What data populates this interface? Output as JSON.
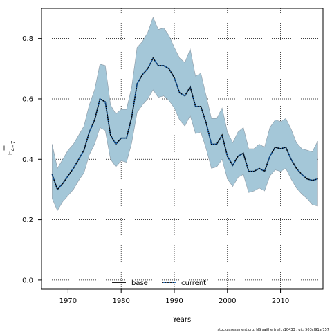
{
  "chart_data": {
    "type": "area",
    "xlabel": "Years",
    "ylabel_main": "F",
    "ylabel_sub": "4−7",
    "xlim": [
      1965,
      2018
    ],
    "ylim": [
      -0.03,
      0.9
    ],
    "x_ticks": [
      1970,
      1980,
      1990,
      2000,
      2010
    ],
    "y_ticks": [
      0.0,
      0.2,
      0.4,
      0.6,
      0.8
    ],
    "y_tick_labels": [
      "0.0",
      "0.2",
      "0.4",
      "0.6",
      "0.8"
    ],
    "grid": true,
    "legend_position": "bottom-center",
    "legend": [
      {
        "label": "base",
        "style": "solid",
        "color": "#000000"
      },
      {
        "label": "current",
        "style": "dotted",
        "color": "#000000",
        "secondary_color": "#1a63b0"
      }
    ],
    "band_color": "#a4c7d8",
    "x": [
      1967,
      1968,
      1969,
      1970,
      1971,
      1972,
      1973,
      1974,
      1975,
      1976,
      1977,
      1978,
      1979,
      1980,
      1981,
      1982,
      1983,
      1984,
      1985,
      1986,
      1987,
      1988,
      1989,
      1990,
      1991,
      1992,
      1993,
      1994,
      1995,
      1996,
      1997,
      1998,
      1999,
      2000,
      2001,
      2002,
      2003,
      2004,
      2005,
      2006,
      2007,
      2008,
      2009,
      2010,
      2011,
      2012,
      2013,
      2014,
      2015,
      2016,
      2017
    ],
    "series": [
      {
        "name": "base",
        "values": [
          0.35,
          0.3,
          0.32,
          0.345,
          0.37,
          0.4,
          0.43,
          0.49,
          0.53,
          0.6,
          0.59,
          0.48,
          0.45,
          0.47,
          0.47,
          0.54,
          0.65,
          0.68,
          0.7,
          0.735,
          0.71,
          0.71,
          0.7,
          0.67,
          0.62,
          0.61,
          0.64,
          0.575,
          0.575,
          0.52,
          0.45,
          0.45,
          0.48,
          0.41,
          0.38,
          0.41,
          0.42,
          0.36,
          0.36,
          0.37,
          0.36,
          0.41,
          0.44,
          0.435,
          0.44,
          0.4,
          0.37,
          0.35,
          0.335,
          0.33,
          0.335
        ]
      },
      {
        "name": "current",
        "values": [
          0.35,
          0.3,
          0.32,
          0.345,
          0.37,
          0.4,
          0.43,
          0.49,
          0.53,
          0.6,
          0.59,
          0.48,
          0.45,
          0.47,
          0.47,
          0.54,
          0.65,
          0.68,
          0.7,
          0.735,
          0.71,
          0.71,
          0.7,
          0.67,
          0.62,
          0.61,
          0.64,
          0.575,
          0.575,
          0.52,
          0.45,
          0.45,
          0.48,
          0.41,
          0.38,
          0.41,
          0.42,
          0.36,
          0.36,
          0.37,
          0.36,
          0.41,
          0.44,
          0.435,
          0.44,
          0.4,
          0.37,
          0.35,
          0.335,
          0.33,
          0.335
        ]
      }
    ],
    "band_upper": [
      0.45,
      0.37,
      0.4,
      0.43,
      0.45,
      0.48,
      0.51,
      0.58,
      0.63,
      0.715,
      0.71,
      0.58,
      0.55,
      0.565,
      0.565,
      0.64,
      0.77,
      0.79,
      0.82,
      0.87,
      0.83,
      0.835,
      0.81,
      0.77,
      0.735,
      0.72,
      0.765,
      0.675,
      0.685,
      0.61,
      0.535,
      0.535,
      0.57,
      0.49,
      0.455,
      0.49,
      0.505,
      0.435,
      0.435,
      0.45,
      0.44,
      0.505,
      0.53,
      0.525,
      0.535,
      0.5,
      0.455,
      0.435,
      0.43,
      0.425,
      0.46
    ],
    "band_lower": [
      0.27,
      0.23,
      0.26,
      0.28,
      0.3,
      0.33,
      0.355,
      0.415,
      0.45,
      0.505,
      0.495,
      0.4,
      0.375,
      0.395,
      0.39,
      0.455,
      0.555,
      0.58,
      0.6,
      0.63,
      0.605,
      0.61,
      0.595,
      0.57,
      0.53,
      0.51,
      0.545,
      0.485,
      0.49,
      0.435,
      0.37,
      0.375,
      0.4,
      0.335,
      0.31,
      0.34,
      0.35,
      0.29,
      0.295,
      0.305,
      0.295,
      0.345,
      0.365,
      0.36,
      0.37,
      0.335,
      0.305,
      0.285,
      0.27,
      0.25,
      0.245
    ]
  },
  "footer": {
    "credit": "stockassessment.org, NS saithe trial, r10433 , git: 503cf91af157"
  }
}
